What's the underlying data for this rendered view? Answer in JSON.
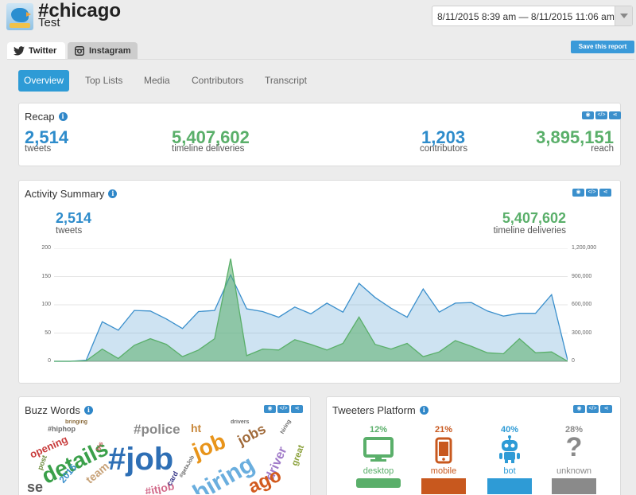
{
  "header": {
    "hashtag": "#chicago",
    "report_name": "Test",
    "date_range": "8/11/2015 8:39 am — 8/11/2015 11:06 am",
    "save_label": "Save this report"
  },
  "source_tabs": [
    {
      "label": "Twitter",
      "icon": "twitter-bird-icon"
    },
    {
      "label": "Instagram",
      "icon": "camera-icon"
    }
  ],
  "nav": [
    "Overview",
    "Top Lists",
    "Media",
    "Contributors",
    "Transcript"
  ],
  "recap": {
    "title": "Recap",
    "tweets": {
      "value": "2,514",
      "label": "tweets"
    },
    "deliveries": {
      "value": "5,407,602",
      "label": "timeline deliveries"
    },
    "contributors": {
      "value": "1,203",
      "label": "contributors"
    },
    "reach": {
      "value": "3,895,151",
      "label": "reach"
    }
  },
  "activity": {
    "title": "Activity Summary",
    "tweets": {
      "value": "2,514",
      "label": "tweets"
    },
    "deliveries": {
      "value": "5,407,602",
      "label": "timeline deliveries"
    }
  },
  "chart_data": {
    "type": "area",
    "left_ticks": [
      "200",
      "150",
      "100",
      "50",
      "0"
    ],
    "right_ticks": [
      "1,200,000",
      "900,000",
      "600,000",
      "300,000",
      "0"
    ],
    "ylim_left": [
      0,
      200
    ],
    "ylim_right": [
      0,
      1200000
    ],
    "series": [
      {
        "values": [
          0,
          0,
          2,
          70,
          55,
          90,
          89,
          75,
          58,
          88,
          90,
          153,
          93,
          88,
          78,
          96,
          84,
          103,
          87,
          138,
          113,
          94,
          78,
          128,
          87,
          103,
          104,
          89,
          80,
          85,
          85,
          118,
          2
        ],
        "color": "#3a8fcc",
        "axis": "left"
      },
      {
        "values": [
          0,
          0,
          5000,
          130000,
          30000,
          170000,
          240000,
          180000,
          50000,
          120000,
          240000,
          1090000,
          60000,
          130000,
          120000,
          230000,
          180000,
          120000,
          190000,
          470000,
          180000,
          130000,
          190000,
          50000,
          100000,
          220000,
          160000,
          90000,
          80000,
          240000,
          90000,
          100000,
          0
        ],
        "color": "#5aaf6a",
        "axis": "right"
      }
    ]
  },
  "buzz": {
    "title": "Buzz Words",
    "words": [
      {
        "t": "#job",
        "c": "#2e6fb5"
      },
      {
        "t": "details",
        "c": "#3aa04a"
      },
      {
        "t": "job",
        "c": "#e8941a"
      },
      {
        "t": "hiring",
        "c": "#6aaede"
      },
      {
        "t": "#police",
        "c": "#8a8a8a"
      },
      {
        "t": "jobs",
        "c": "#a06a3a"
      },
      {
        "t": "driver",
        "c": "#a07ac8"
      },
      {
        "t": "ago",
        "c": "#d25a1e"
      },
      {
        "t": "ht",
        "c": "#c8873a"
      },
      {
        "t": "opening",
        "c": "#c83a3a"
      },
      {
        "t": "#hiphop",
        "c": "#6a6a6a"
      },
      {
        "t": "2015",
        "c": "#3a8fcc"
      },
      {
        "t": "team",
        "c": "#c8a37a"
      },
      {
        "t": "#itjob",
        "c": "#d26a8a"
      },
      {
        "t": "great",
        "c": "#8aa03a"
      },
      {
        "t": "card",
        "c": "#3a3a8a"
      },
      {
        "t": "post",
        "c": "#6a8a3a"
      },
      {
        "t": "se",
        "c": "#5a5a5a"
      },
      {
        "t": "bis",
        "c": "#c85a5a"
      },
      {
        "t": "bringing",
        "c": "#8a6a3a"
      },
      {
        "t": "drivers",
        "c": "#6a6a6a"
      },
      {
        "t": "hiring",
        "c": "#6a6a6a"
      },
      {
        "t": "#getaJob",
        "c": "#6a6a6a"
      }
    ]
  },
  "platform": {
    "title": "Tweeters Platform",
    "items": [
      {
        "pct": "12%",
        "label": "desktop",
        "icon": "desktop-icon",
        "color": "#5aaf6a",
        "share": 12
      },
      {
        "pct": "21%",
        "label": "mobile",
        "icon": "mobile-phone-icon",
        "color": "#c8581e",
        "share": 21
      },
      {
        "pct": "40%",
        "label": "bot",
        "icon": "robot-icon",
        "color": "#2e9bd6",
        "share": 40
      },
      {
        "pct": "28%",
        "label": "unknown",
        "icon": "question-mark-icon",
        "color": "#8a8a8a",
        "share": 28
      }
    ]
  }
}
